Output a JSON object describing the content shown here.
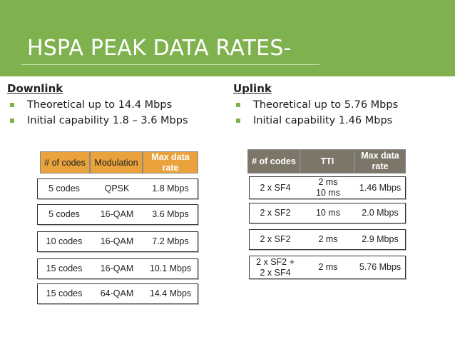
{
  "slide": {
    "title": "HSPA PEAK DATA RATES-",
    "colors": {
      "banner": "#7fb24e",
      "bullet": "#7fb24e",
      "downlink_header": "#e9a23c",
      "uplink_header": "#7c7668"
    }
  },
  "downlink": {
    "heading": "Downlink",
    "bullets": [
      "Theoretical up to 14.4 Mbps",
      "Initial capability 1.8 – 3.6 Mbps"
    ],
    "table": {
      "headers": [
        "# of codes",
        "Modulation",
        "Max data rate"
      ],
      "rows": [
        [
          "5 codes",
          "QPSK",
          "1.8 Mbps"
        ],
        [
          "5 codes",
          "16-QAM",
          "3.6 Mbps"
        ],
        [
          "10 codes",
          "16-QAM",
          "7.2 Mbps"
        ],
        [
          "15 codes",
          "16-QAM",
          "10.1 Mbps"
        ],
        [
          "15 codes",
          "64-QAM",
          "14.4 Mbps"
        ]
      ]
    }
  },
  "uplink": {
    "heading": "Uplink",
    "bullets": [
      "Theoretical up to 5.76 Mbps",
      "Initial capability 1.46 Mbps"
    ],
    "table": {
      "headers": [
        "# of codes",
        "TTI",
        "Max data rate"
      ],
      "rows": [
        [
          "2 x SF4",
          "2 ms 10 ms",
          "1.46 Mbps"
        ],
        [
          "2 x SF2",
          "10 ms",
          "2.0 Mbps"
        ],
        [
          "2 x SF2",
          "2 ms",
          "2.9 Mbps"
        ],
        [
          "2 x SF2 + 2 x SF4",
          "2 ms",
          "5.76 Mbps"
        ]
      ]
    }
  }
}
